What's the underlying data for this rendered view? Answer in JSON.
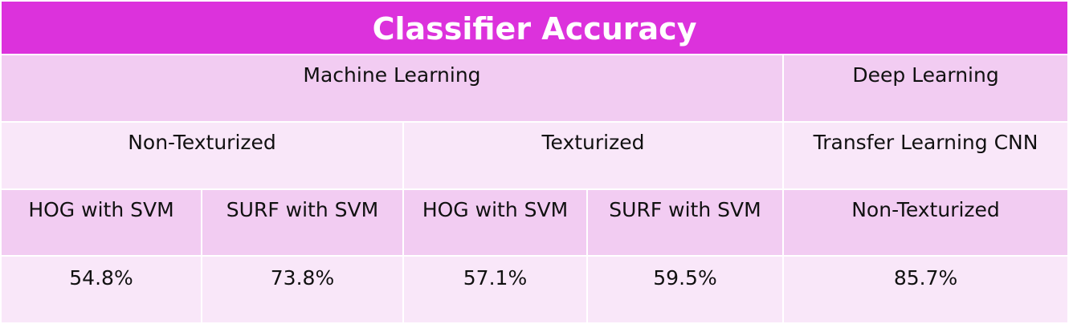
{
  "table": {
    "title": "Classifier Accuracy",
    "row1": {
      "machine_learning": "Machine Learning",
      "deep_learning": "Deep Learning"
    },
    "row2": {
      "non_texturized": "Non-Texturized",
      "texturized": "Texturized",
      "transfer_cnn": "Transfer Learning CNN"
    },
    "row3": {
      "hog_svm_1": "HOG with SVM",
      "surf_svm_1": "SURF with SVM",
      "hog_svm_2": "HOG with SVM",
      "surf_svm_2": "SURF with SVM",
      "non_texturized_dl": "Non-Texturized"
    },
    "row4": {
      "v1": "54.8%",
      "v2": "73.8%",
      "v3": "57.1%",
      "v4": "59.5%",
      "v5": "85.7%"
    }
  },
  "colors": {
    "header": "#dc32dc",
    "dark_row": "#f2ccf2",
    "light_row": "#f9e7f9"
  }
}
